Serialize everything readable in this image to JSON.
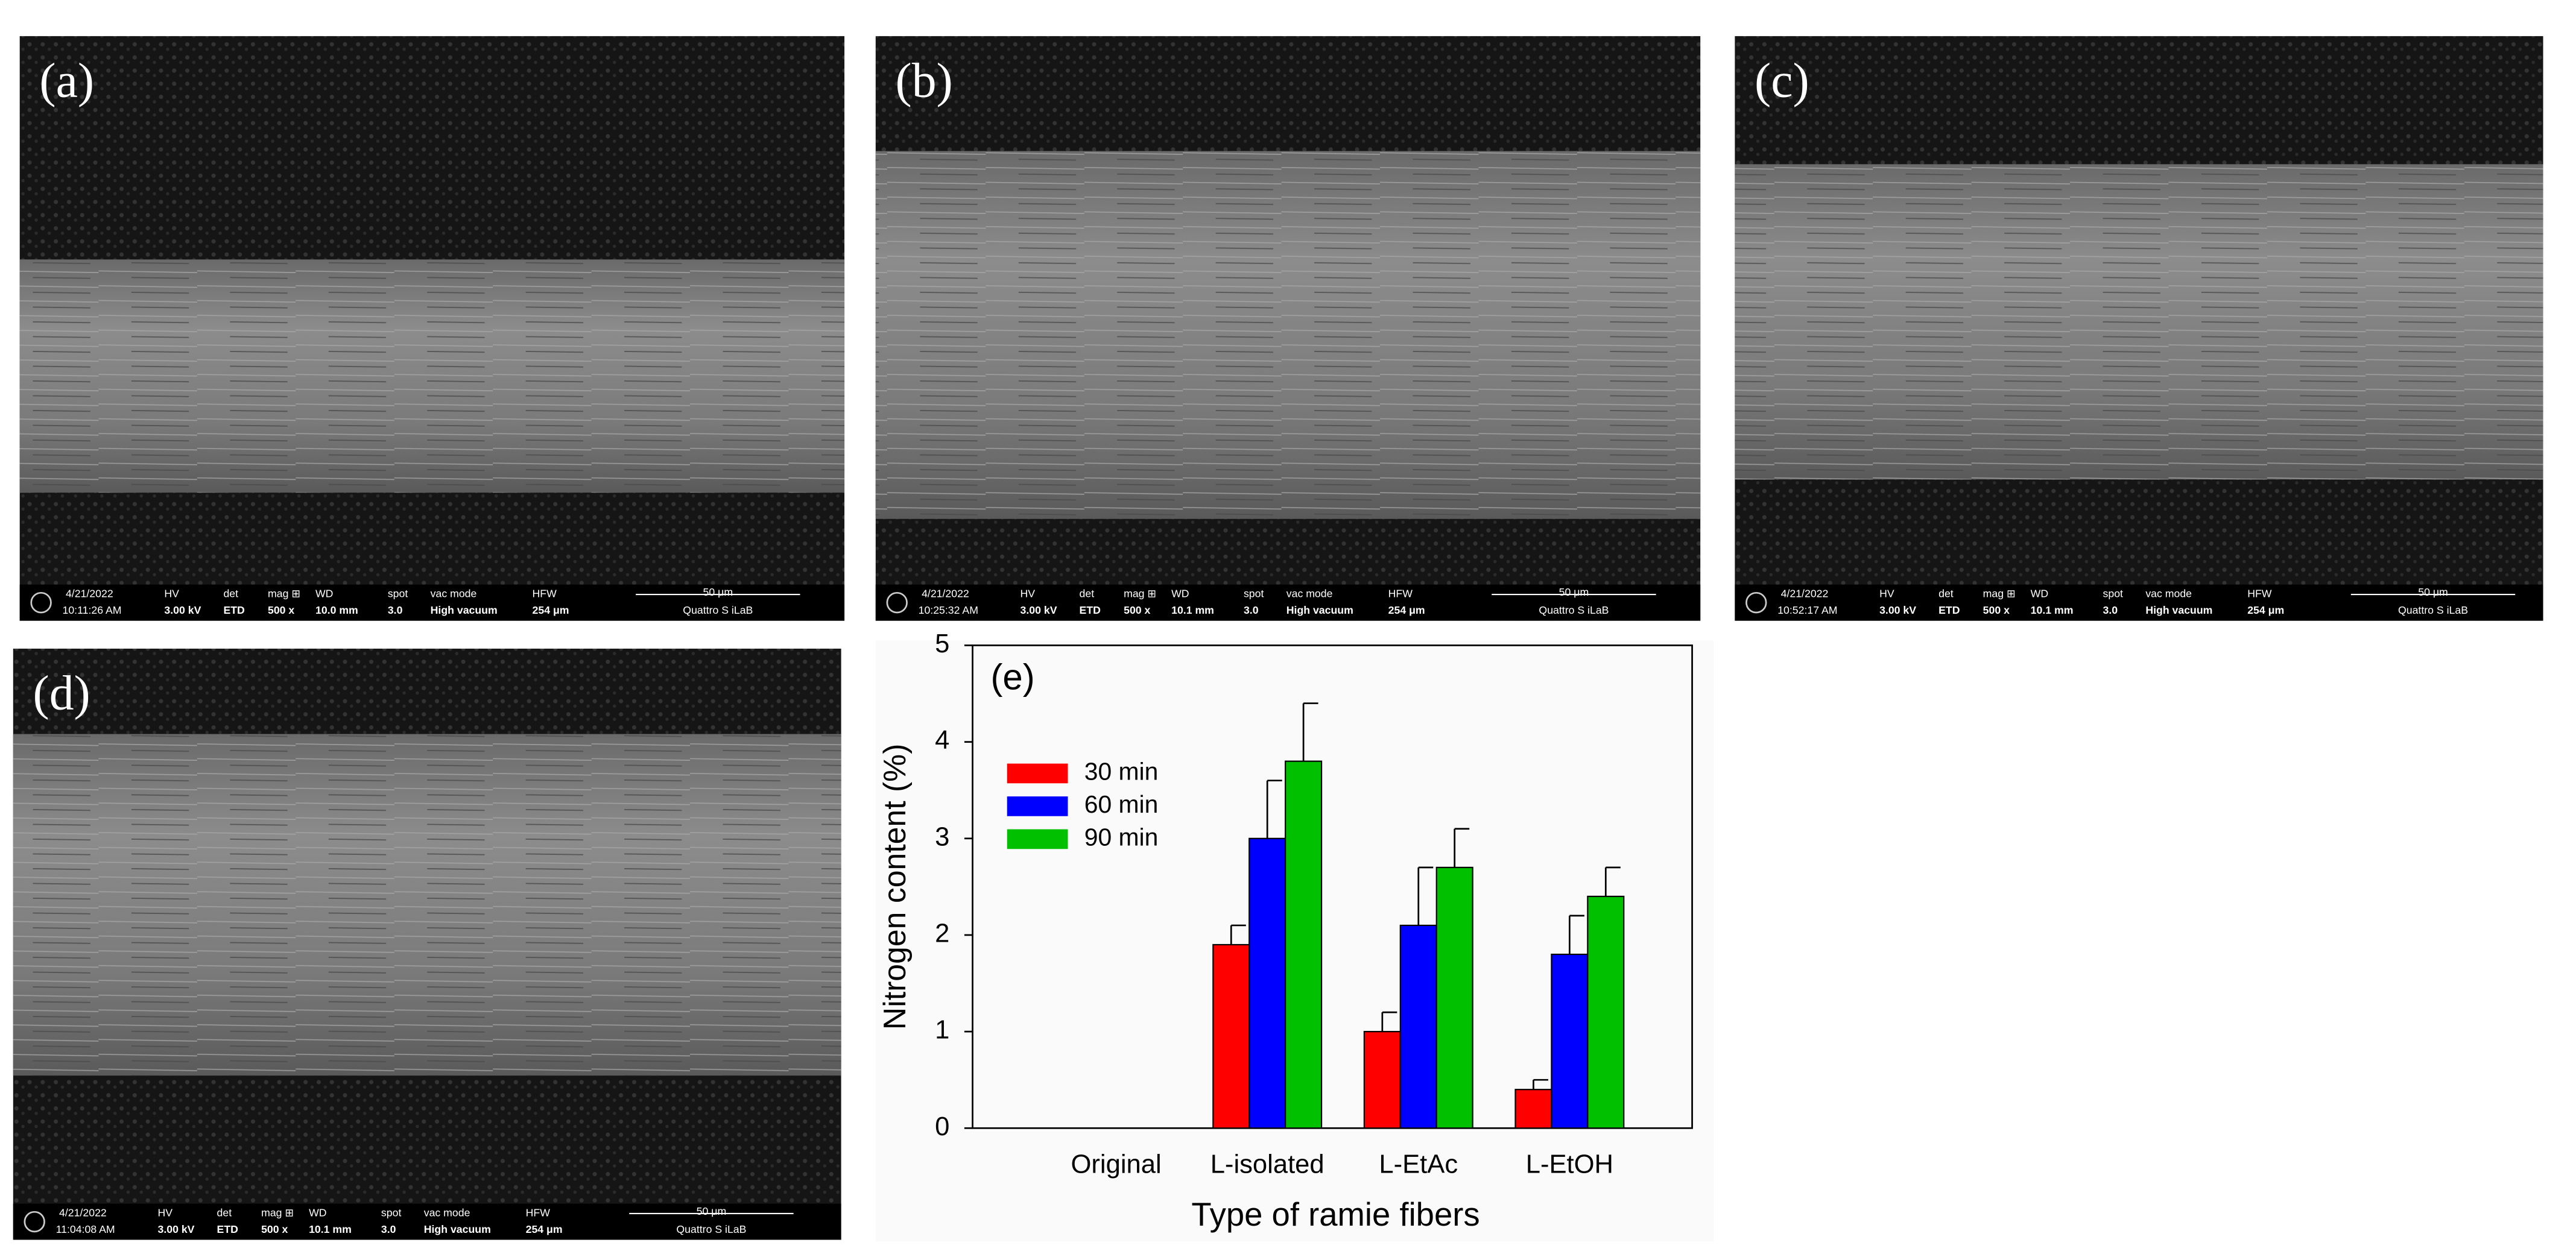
{
  "panels": [
    {
      "label": "(a)",
      "info": {
        "date": "4/21/2022",
        "time": "10:11:26 AM",
        "hv": "3.00 kV",
        "det": "ETD",
        "mag": "500 x",
        "wd": "10.0 mm",
        "spot": "3.0",
        "vac": "High vacuum",
        "hfw": "254 μm",
        "scale": "50 μm",
        "instrument": "Quattro S iLaB"
      }
    },
    {
      "label": "(b)",
      "info": {
        "date": "4/21/2022",
        "time": "10:25:32 AM",
        "hv": "3.00 kV",
        "det": "ETD",
        "mag": "500 x",
        "wd": "10.1 mm",
        "spot": "3.0",
        "vac": "High vacuum",
        "hfw": "254 μm",
        "scale": "50 μm",
        "instrument": "Quattro S iLaB"
      }
    },
    {
      "label": "(c)",
      "info": {
        "date": "4/21/2022",
        "time": "10:52:17 AM",
        "hv": "3.00 kV",
        "det": "ETD",
        "mag": "500 x",
        "wd": "10.1 mm",
        "spot": "3.0",
        "vac": "High vacuum",
        "hfw": "254 μm",
        "scale": "50 μm",
        "instrument": "Quattro S iLaB"
      }
    },
    {
      "label": "(d)",
      "info": {
        "date": "4/21/2022",
        "time": "11:04:08 AM",
        "hv": "3.00 kV",
        "det": "ETD",
        "mag": "500 x",
        "wd": "10.1 mm",
        "spot": "3.0",
        "vac": "High vacuum",
        "hfw": "254 μm",
        "scale": "50 μm",
        "instrument": "Quattro S iLaB"
      }
    }
  ],
  "info_headers": [
    "HV",
    "det",
    "mag ⊞",
    "WD",
    "spot",
    "vac mode",
    "HFW"
  ],
  "chart_data": {
    "type": "bar",
    "panel_label": "(e)",
    "x_label": "Type of ramie fibers",
    "y_label": "Nitrogen content (%)",
    "categories": [
      "Original",
      "L-isolated",
      "L-EtAc",
      "L-EtOH"
    ],
    "series": [
      {
        "name": "30 min",
        "color": "#ff0000",
        "values": [
          null,
          1.9,
          1.0,
          0.4
        ],
        "errors": [
          null,
          0.2,
          0.2,
          0.1
        ]
      },
      {
        "name": "60 min",
        "color": "#0000ff",
        "values": [
          null,
          3.0,
          2.1,
          1.8
        ],
        "errors": [
          null,
          0.6,
          0.6,
          0.4
        ]
      },
      {
        "name": "90 min",
        "color": "#00c000",
        "values": [
          null,
          3.8,
          2.7,
          2.4
        ],
        "errors": [
          null,
          0.6,
          0.4,
          0.3
        ]
      }
    ],
    "ylim": [
      0,
      5
    ],
    "yticks": [
      0,
      1,
      2,
      3,
      4,
      5
    ],
    "legend": "upper left"
  }
}
